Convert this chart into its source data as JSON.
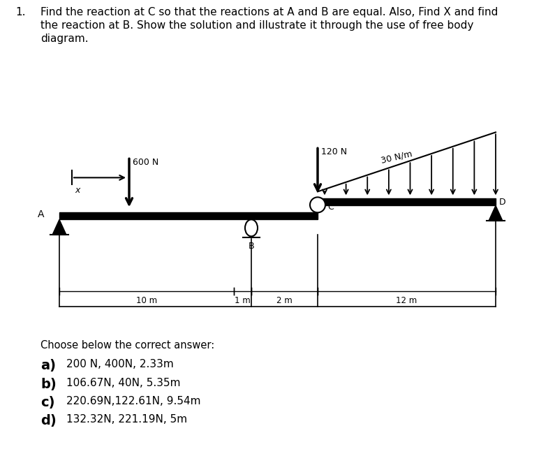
{
  "title_number": "1.",
  "title_text": "Find the reaction at C so that the reactions at A and B are equal. Also, Find X and find\nthe reaction at B. Show the solution and illustrate it through the use of free body\ndiagram.",
  "question_text": "Choose below the correct answer:",
  "answer_labels": [
    "a)",
    "b)",
    "c)",
    "d)"
  ],
  "answer_texts": [
    "200 N, 400N, 2.33m",
    "106.67N, 40N, 5.35m",
    "220.69N,122.61N, 9.54m",
    "132.32N, 221.19N, 5m"
  ],
  "bg_color": "#ffffff",
  "label_600N": "600 N",
  "label_120N": "120 N",
  "label_30Nm": "30 N/m",
  "label_A": "A",
  "label_B": "B",
  "label_C": "C",
  "label_D": "D",
  "label_X": "x",
  "dim_10m": "10 m",
  "dim_1m": "1 m",
  "dim_2m": "2 m",
  "dim_12m": "12 m"
}
